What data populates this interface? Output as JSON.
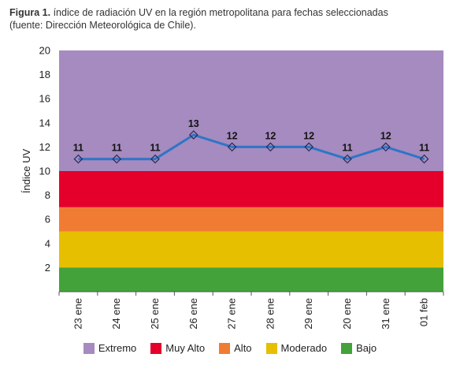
{
  "caption": {
    "lead": "Figura 1.",
    "line1": "índice de radiación UV en la región metropolitana para fechas seleccionadas",
    "line2": "(fuente: Dirección Meteorológica de Chile)."
  },
  "chart_data": {
    "type": "line",
    "title": "",
    "ylabel": "Índice UV",
    "xlabel": "",
    "ylim": [
      0,
      20
    ],
    "yticks": [
      2,
      4,
      6,
      8,
      10,
      12,
      14,
      16,
      18,
      20
    ],
    "categories": [
      "23 ene",
      "24 ene",
      "25 ene",
      "26 ene",
      "27 ene",
      "28 ene",
      "29 ene",
      "20 ene",
      "31 ene",
      "01 feb"
    ],
    "series": [
      {
        "values": [
          11,
          11,
          11,
          13,
          12,
          12,
          12,
          11,
          12,
          11
        ],
        "color": "#2e75c8"
      }
    ],
    "bands": [
      {
        "name": "Extremo",
        "from": 10,
        "to": 20,
        "color": "#a58bbf"
      },
      {
        "name": "Muy Alto",
        "from": 7,
        "to": 10,
        "color": "#e4002b"
      },
      {
        "name": "Alto",
        "from": 5,
        "to": 7,
        "color": "#f07c33"
      },
      {
        "name": "Moderado",
        "from": 2,
        "to": 5,
        "color": "#e6bf00"
      },
      {
        "name": "Bajo",
        "from": 0,
        "to": 2,
        "color": "#43a33a"
      }
    ],
    "grid": false,
    "legend_position": "bottom"
  }
}
